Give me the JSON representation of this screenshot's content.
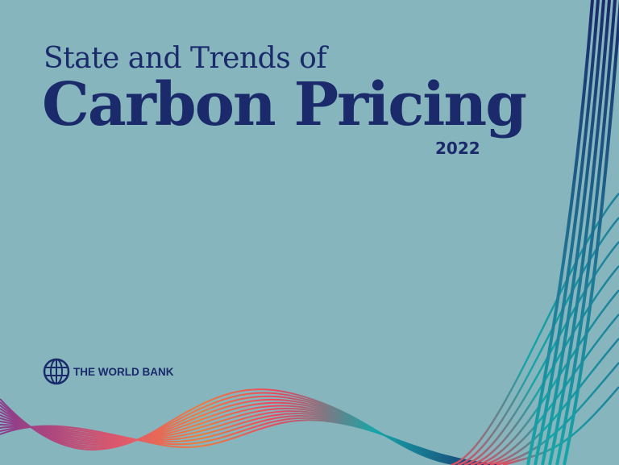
{
  "cover": {
    "title_line1": "State and Trends of",
    "title_line2": "Carbon Pricing",
    "year": "2022",
    "publisher": "THE WORLD BANK",
    "publisher_icon": "globe-icon"
  },
  "colors": {
    "background": "#86b5bd",
    "title": "#1a2a6b",
    "wave_navy": "#1a2a6b",
    "wave_teal": "#16a6a8",
    "wave_orange": "#f07a3c",
    "wave_pink": "#e8485e",
    "wave_purple": "#8a3a8c"
  }
}
